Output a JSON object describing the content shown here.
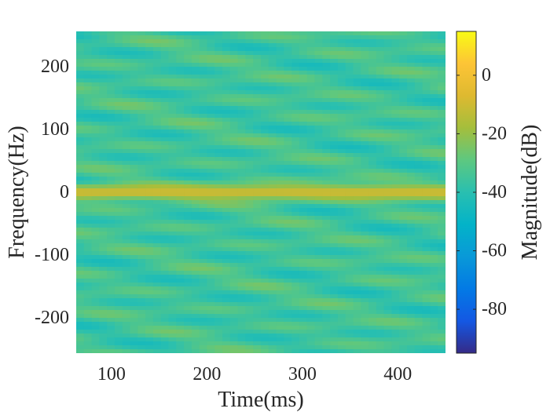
{
  "chart_data": {
    "type": "heatmap",
    "title": "",
    "xlabel": "Time(ms)",
    "ylabel": "Frequency(Hz)",
    "colorbar_label": "Magnitude(dB)",
    "colormap": "parula",
    "xlim": [
      63,
      450
    ],
    "ylim": [
      -256,
      256
    ],
    "clim": [
      -95,
      15
    ],
    "x_ticks": [
      100,
      200,
      300,
      400
    ],
    "x_tick_labels": [
      "100",
      "200",
      "300",
      "400"
    ],
    "y_ticks": [
      200,
      100,
      0,
      -100,
      -200
    ],
    "y_tick_labels": [
      "200",
      "100",
      "0",
      "-100",
      "-200"
    ],
    "colorbar_ticks": [
      0,
      -20,
      -40,
      -60,
      -80
    ],
    "colorbar_tick_labels": [
      "0",
      "-20",
      "-40",
      "-60",
      "-80"
    ],
    "ridge": {
      "frequency_hz": 0,
      "magnitude_db": -10,
      "halfwidth_hz": 12
    },
    "background_magnitude_db": [
      -45,
      -25
    ],
    "grid": false
  }
}
